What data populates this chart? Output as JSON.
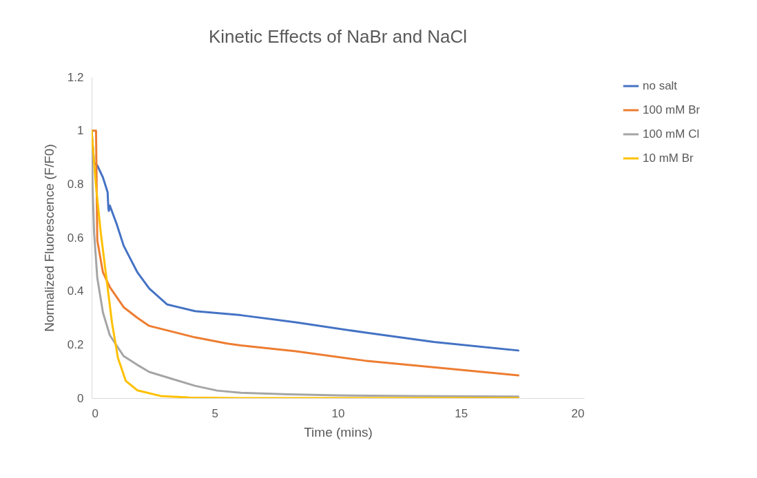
{
  "chart_data": {
    "type": "line",
    "title": "Kinetic Effects of NaBr and NaCl",
    "xlabel": "Time (mins)",
    "ylabel": "Normalized Fluorescence (F/F0)",
    "xlim": [
      0,
      20
    ],
    "xticks": [
      0,
      5,
      10,
      15,
      20
    ],
    "ylim": [
      0,
      1.2
    ],
    "yticks": [
      0,
      0.2,
      0.4,
      0.6,
      0.8,
      1,
      1.2
    ],
    "grid": false,
    "legend": "right",
    "marker": "none",
    "line_style": "solid",
    "series": [
      {
        "name": "no salt",
        "color": "#4472c4",
        "x": [
          0,
          0.1,
          0.23,
          0.46,
          0.65,
          0.68,
          0.7,
          0.74,
          1.02,
          1.3,
          1.58,
          1.86,
          2.34,
          3.07,
          4.2,
          5.5,
          6.06,
          8.3,
          11.1,
          13.9,
          17.33
        ],
        "values": [
          1,
          0.88,
          0.87,
          0.825,
          0.77,
          0.71,
          0.7,
          0.72,
          0.65,
          0.57,
          0.52,
          0.47,
          0.41,
          0.35,
          0.325,
          0.315,
          0.31,
          0.283,
          0.245,
          0.21,
          0.178
        ]
      },
      {
        "name": "100 mM Br",
        "color": "#ed7d31",
        "x": [
          0,
          0.12,
          0.18,
          0.23,
          0.46,
          0.74,
          1.3,
          1.86,
          2.34,
          4.2,
          5.5,
          6.06,
          8.3,
          11.1,
          13.9,
          17.33
        ],
        "values": [
          1,
          1,
          1,
          0.59,
          0.47,
          0.415,
          0.34,
          0.3,
          0.27,
          0.227,
          0.204,
          0.197,
          0.175,
          0.14,
          0.115,
          0.085
        ]
      },
      {
        "name": "100 mM Cl",
        "color": "#a5a5a5",
        "x": [
          0,
          0.04,
          0.1,
          0.23,
          0.46,
          0.74,
          1.3,
          1.86,
          2.34,
          3.26,
          4.2,
          5.1,
          6.06,
          8,
          10,
          13,
          17.33
        ],
        "values": [
          1,
          0.79,
          0.62,
          0.45,
          0.32,
          0.235,
          0.157,
          0.124,
          0.098,
          0.072,
          0.046,
          0.028,
          0.02,
          0.014,
          0.01,
          0.008,
          0.006
        ]
      },
      {
        "name": "10 mM Br",
        "color": "#ffc000",
        "x": [
          0,
          0.18,
          0.37,
          0.6,
          0.83,
          1.07,
          1.39,
          1.86,
          2.8,
          4,
          6,
          10,
          17.33
        ],
        "values": [
          1,
          0.79,
          0.62,
          0.45,
          0.28,
          0.15,
          0.064,
          0.029,
          0.008,
          0.002,
          0,
          0,
          0
        ]
      }
    ]
  }
}
